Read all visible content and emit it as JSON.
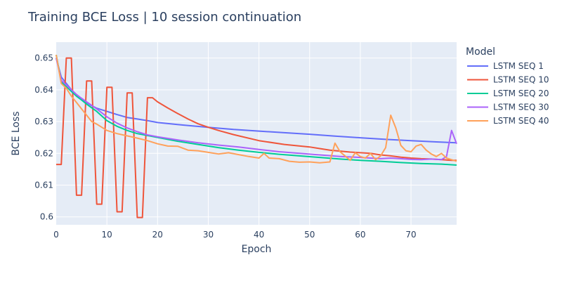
{
  "chart_data": {
    "type": "line",
    "title": "Training BCE Loss | 10 session continuation",
    "xlabel": "Epoch",
    "ylabel": "BCE Loss",
    "xlim": [
      0,
      79
    ],
    "ylim": [
      0.5975,
      0.655
    ],
    "x_ticks": [
      0,
      10,
      20,
      30,
      40,
      50,
      60,
      70
    ],
    "x_tick_labels": [
      "0",
      "10",
      "20",
      "30",
      "40",
      "50",
      "60",
      "70"
    ],
    "y_ticks": [
      0.6,
      0.61,
      0.62,
      0.63,
      0.64,
      0.65
    ],
    "y_tick_labels": [
      "0.6",
      "0.61",
      "0.62",
      "0.63",
      "0.64",
      "0.65"
    ],
    "grid": true,
    "legend_title": "Model",
    "legend_position": "right",
    "series": [
      {
        "name": "LSTM SEQ 1",
        "color": "#636efa",
        "x": [
          0,
          1,
          2,
          3,
          4,
          5,
          6,
          7,
          8,
          10,
          12,
          14,
          16,
          18,
          20,
          25,
          30,
          35,
          40,
          45,
          50,
          55,
          60,
          65,
          70,
          75,
          79
        ],
        "y": [
          0.65,
          0.644,
          0.642,
          0.64,
          0.6385,
          0.6372,
          0.636,
          0.635,
          0.6342,
          0.6332,
          0.6322,
          0.6313,
          0.6308,
          0.6303,
          0.6297,
          0.6289,
          0.6282,
          0.6275,
          0.627,
          0.6265,
          0.626,
          0.6254,
          0.6249,
          0.6244,
          0.624,
          0.6236,
          0.6233
        ]
      },
      {
        "name": "LSTM SEQ 10",
        "color": "#ef553b",
        "x": [
          0,
          1,
          2,
          3,
          4,
          5,
          6,
          7,
          8,
          9,
          10,
          11,
          12,
          13,
          14,
          15,
          16,
          17,
          18,
          19,
          20,
          22,
          24,
          26,
          28,
          30,
          32,
          35,
          40,
          45,
          50,
          52,
          54,
          56,
          58,
          60,
          62,
          64,
          66,
          68,
          70,
          72,
          74,
          76,
          78,
          79
        ],
        "y": [
          0.6165,
          0.6165,
          0.65,
          0.65,
          0.6068,
          0.6068,
          0.6428,
          0.6428,
          0.604,
          0.604,
          0.6408,
          0.6408,
          0.6016,
          0.6016,
          0.639,
          0.639,
          0.5998,
          0.5998,
          0.6375,
          0.6375,
          0.6362,
          0.6343,
          0.6325,
          0.6308,
          0.6293,
          0.6282,
          0.6272,
          0.6259,
          0.624,
          0.6228,
          0.622,
          0.6215,
          0.621,
          0.6207,
          0.6204,
          0.6202,
          0.62,
          0.6195,
          0.6192,
          0.6188,
          0.6185,
          0.6183,
          0.6182,
          0.618,
          0.6178,
          0.6178
        ]
      },
      {
        "name": "LSTM SEQ 20",
        "color": "#00cc96",
        "x": [
          0,
          1,
          2,
          3,
          4,
          5,
          6,
          8,
          10,
          12,
          14,
          16,
          18,
          20,
          24,
          28,
          32,
          36,
          40,
          44,
          48,
          52,
          56,
          60,
          64,
          68,
          72,
          76,
          79
        ],
        "y": [
          0.651,
          0.6425,
          0.641,
          0.6395,
          0.638,
          0.6368,
          0.6355,
          0.6332,
          0.6303,
          0.6285,
          0.6272,
          0.6262,
          0.6256,
          0.625,
          0.6238,
          0.6228,
          0.6218,
          0.621,
          0.6203,
          0.6197,
          0.6192,
          0.6187,
          0.6182,
          0.6178,
          0.6175,
          0.6171,
          0.6168,
          0.6166,
          0.6163
        ]
      },
      {
        "name": "LSTM SEQ 30",
        "color": "#ab63fa",
        "x": [
          0,
          1,
          2,
          3,
          4,
          5,
          6,
          8,
          10,
          12,
          14,
          16,
          18,
          20,
          24,
          28,
          32,
          36,
          40,
          44,
          48,
          52,
          56,
          60,
          62,
          64,
          66,
          68,
          70,
          72,
          74,
          76,
          77,
          78,
          79
        ],
        "y": [
          0.65,
          0.643,
          0.6415,
          0.64,
          0.6385,
          0.6373,
          0.6362,
          0.634,
          0.6315,
          0.6295,
          0.628,
          0.6268,
          0.6258,
          0.6252,
          0.6242,
          0.6233,
          0.6226,
          0.622,
          0.6212,
          0.6205,
          0.62,
          0.6195,
          0.619,
          0.6187,
          0.6185,
          0.6183,
          0.6185,
          0.6183,
          0.6181,
          0.618,
          0.6182,
          0.618,
          0.619,
          0.6272,
          0.623
        ]
      },
      {
        "name": "LSTM SEQ 40",
        "color": "#ffa15a",
        "x": [
          0,
          1,
          2,
          3,
          4,
          5,
          6,
          7,
          8,
          10,
          12,
          14,
          16,
          18,
          20,
          22,
          24,
          26,
          28,
          30,
          32,
          34,
          36,
          38,
          40,
          41,
          42,
          44,
          46,
          48,
          50,
          52,
          54,
          55,
          56,
          58,
          59,
          60,
          61,
          62,
          63,
          64,
          65,
          66,
          67,
          68,
          69,
          70,
          71,
          72,
          73,
          74,
          75,
          76,
          77,
          78,
          79
        ],
        "y": [
          0.651,
          0.642,
          0.6405,
          0.638,
          0.636,
          0.634,
          0.632,
          0.63,
          0.6292,
          0.6272,
          0.6262,
          0.6255,
          0.6248,
          0.624,
          0.623,
          0.6223,
          0.6222,
          0.621,
          0.6208,
          0.6203,
          0.6198,
          0.6202,
          0.6196,
          0.619,
          0.6185,
          0.62,
          0.6185,
          0.6183,
          0.6175,
          0.6172,
          0.6173,
          0.617,
          0.6173,
          0.6232,
          0.6205,
          0.6178,
          0.6202,
          0.619,
          0.6185,
          0.62,
          0.618,
          0.6192,
          0.6218,
          0.632,
          0.628,
          0.6225,
          0.6208,
          0.6205,
          0.6223,
          0.6228,
          0.621,
          0.6198,
          0.619,
          0.62,
          0.6185,
          0.618,
          0.6175
        ]
      }
    ]
  }
}
